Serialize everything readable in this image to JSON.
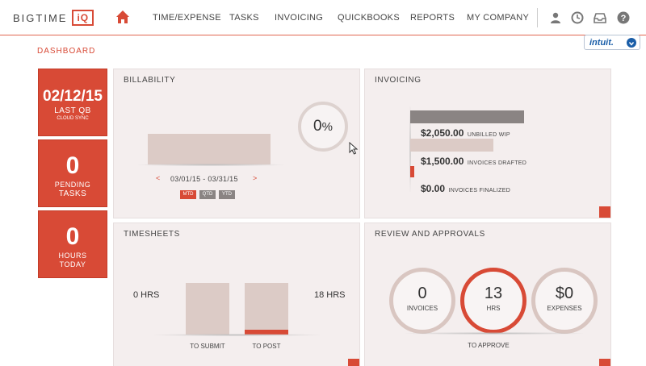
{
  "header": {
    "logo_text": "BIGTIME",
    "logo_iq": "iQ",
    "nav": [
      "TIME/EXPENSE",
      "TASKS",
      "INVOICING",
      "QUICKBOOKS",
      "REPORTS",
      "MY COMPANY"
    ],
    "intuit": "intuit."
  },
  "breadcrumb": "DASHBOARD",
  "tiles": {
    "qb": {
      "date": "02/12/15",
      "line1": "LAST QB",
      "line2": "CLOUD SYNC"
    },
    "tasks": {
      "count": "0",
      "line1": "PENDING",
      "line2": "TASKS"
    },
    "hours": {
      "count": "0",
      "line1": "HOURS",
      "line2": "TODAY"
    }
  },
  "billability": {
    "title": "BILLABILITY",
    "percent": "0",
    "percent_sign": "%",
    "date_range": "03/01/15 - 03/31/15",
    "prev": "<",
    "next": ">",
    "periods": [
      "MTD",
      "QTD",
      "YTD"
    ],
    "selected_period": "MTD"
  },
  "invoicing": {
    "title": "INVOICING",
    "rows": [
      {
        "amount": "$2,050.00",
        "label": "UNBILLED WIP"
      },
      {
        "amount": "$1,500.00",
        "label": "INVOICES DRAFTED"
      },
      {
        "amount": "$0.00",
        "label": "INVOICES FINALIZED"
      }
    ]
  },
  "timesheets": {
    "title": "TIMESHEETS",
    "left_label": "0 HRS",
    "right_label": "18 HRS",
    "bars": [
      "TO SUBMIT",
      "TO POST"
    ]
  },
  "review": {
    "title": "REVIEW AND APPROVALS",
    "circles": [
      {
        "value": "0",
        "label": "INVOICES"
      },
      {
        "value": "13",
        "label": "HRS"
      },
      {
        "value": "$0",
        "label": "EXPENSES"
      }
    ],
    "footer": "TO APPROVE"
  },
  "colors": {
    "accent": "#d84a36",
    "panel_bg": "#f4eeee",
    "bar": "#d9c6c1"
  }
}
